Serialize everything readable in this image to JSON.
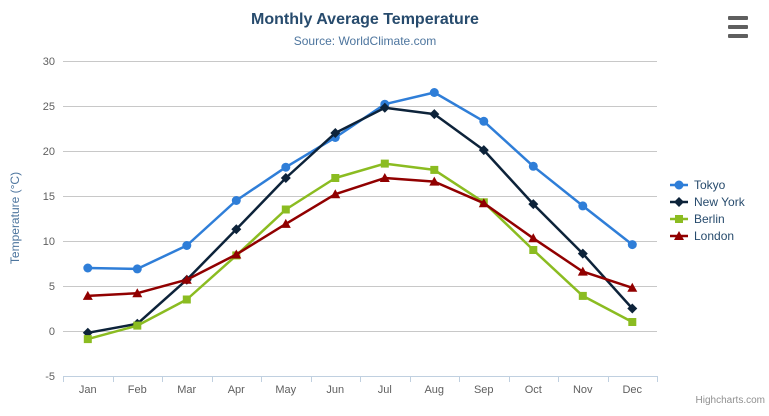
{
  "chart_data": {
    "type": "line",
    "title": "Monthly Average Temperature",
    "subtitle": "Source: WorldClimate.com",
    "xlabel": "",
    "ylabel": "Temperature (°C)",
    "categories": [
      "Jan",
      "Feb",
      "Mar",
      "Apr",
      "May",
      "Jun",
      "Jul",
      "Aug",
      "Sep",
      "Oct",
      "Nov",
      "Dec"
    ],
    "ylim": [
      -5,
      30
    ],
    "y_tick_step": 5,
    "grid": true,
    "legend_position": "right",
    "series": [
      {
        "name": "Tokyo",
        "color": "#2f7ed8",
        "marker": "circle",
        "values": [
          7.0,
          6.9,
          9.5,
          14.5,
          18.2,
          21.5,
          25.2,
          26.5,
          23.3,
          18.3,
          13.9,
          9.6
        ]
      },
      {
        "name": "New York",
        "color": "#0d233a",
        "marker": "diamond",
        "values": [
          -0.2,
          0.8,
          5.7,
          11.3,
          17.0,
          22.0,
          24.8,
          24.1,
          20.1,
          14.1,
          8.6,
          2.5
        ]
      },
      {
        "name": "Berlin",
        "color": "#8bbc21",
        "marker": "square",
        "values": [
          -0.9,
          0.6,
          3.5,
          8.4,
          13.5,
          17.0,
          18.6,
          17.9,
          14.3,
          9.0,
          3.9,
          1.0
        ]
      },
      {
        "name": "London",
        "color": "#910000",
        "marker": "triangle",
        "values": [
          3.9,
          4.2,
          5.7,
          8.5,
          11.9,
          15.2,
          17.0,
          16.6,
          14.2,
          10.3,
          6.6,
          4.8
        ]
      }
    ],
    "axis_colors": {
      "grid_line": "#c8c8c8",
      "axis_line": "#c0d0e0",
      "tick": "#c0d0e0",
      "label": "#606060"
    }
  },
  "credits": "Highcharts.com",
  "context_menu_icon": "hamburger-menu"
}
